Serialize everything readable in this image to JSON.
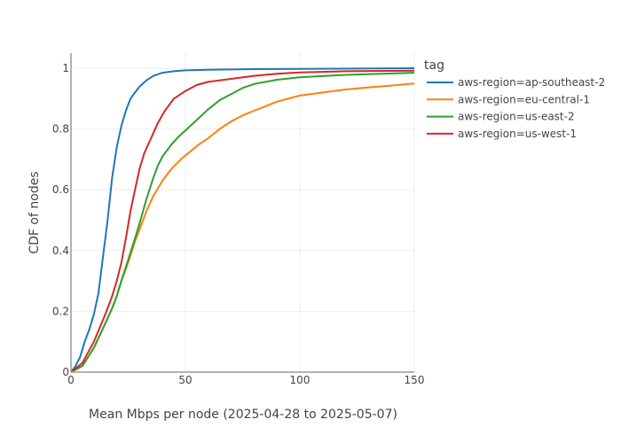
{
  "chart_data": {
    "type": "line",
    "title": "",
    "xlabel": "Mean Mbps per node (2025-04-28 to 2025-05-07)",
    "ylabel": "CDF of nodes",
    "xlim": [
      0,
      150
    ],
    "ylim": [
      0,
      1.05
    ],
    "xticks": [
      0,
      50,
      100,
      150
    ],
    "xtick_labels": [
      "0",
      "50",
      "100",
      "150"
    ],
    "yticks": [
      0,
      0.2,
      0.4,
      0.6,
      0.8,
      1
    ],
    "ytick_labels": [
      "0",
      "0.2",
      "0.4",
      "0.6",
      "0.8",
      "1"
    ],
    "grid": true,
    "legend_title": "tag",
    "legend_position": "right",
    "series": [
      {
        "name": "aws-region=ap-southeast-2",
        "color": "#1f77b4",
        "x": [
          0,
          2,
          4,
          6,
          8,
          10,
          12,
          14,
          16,
          18,
          20,
          22,
          24,
          26,
          28,
          30,
          33,
          36,
          40,
          45,
          50,
          60,
          80,
          100,
          150
        ],
        "y": [
          0,
          0.02,
          0.05,
          0.1,
          0.14,
          0.19,
          0.26,
          0.38,
          0.5,
          0.64,
          0.74,
          0.81,
          0.86,
          0.9,
          0.92,
          0.94,
          0.96,
          0.975,
          0.985,
          0.99,
          0.993,
          0.995,
          0.997,
          0.998,
          1.0
        ]
      },
      {
        "name": "aws-region=eu-central-1",
        "color": "#ff7f0e",
        "x": [
          0,
          5,
          10,
          15,
          18,
          20,
          22,
          25,
          28,
          30,
          33,
          36,
          40,
          44,
          48,
          52,
          56,
          60,
          65,
          70,
          75,
          80,
          85,
          90,
          100,
          110,
          120,
          130,
          140,
          150
        ],
        "y": [
          0,
          0.02,
          0.08,
          0.16,
          0.21,
          0.25,
          0.3,
          0.36,
          0.43,
          0.47,
          0.53,
          0.58,
          0.63,
          0.67,
          0.7,
          0.725,
          0.75,
          0.77,
          0.8,
          0.825,
          0.845,
          0.86,
          0.875,
          0.89,
          0.91,
          0.92,
          0.93,
          0.937,
          0.943,
          0.95
        ]
      },
      {
        "name": "aws-region=us-east-2",
        "color": "#2ca02c",
        "x": [
          0,
          5,
          10,
          15,
          18,
          20,
          22,
          25,
          28,
          30,
          33,
          36,
          38,
          40,
          44,
          47,
          50,
          55,
          60,
          65,
          70,
          75,
          80,
          90,
          100,
          120,
          150
        ],
        "y": [
          0,
          0.02,
          0.08,
          0.16,
          0.21,
          0.25,
          0.3,
          0.37,
          0.44,
          0.49,
          0.57,
          0.64,
          0.68,
          0.71,
          0.75,
          0.775,
          0.795,
          0.83,
          0.865,
          0.895,
          0.915,
          0.935,
          0.948,
          0.962,
          0.97,
          0.978,
          0.985
        ]
      },
      {
        "name": "aws-region=us-west-1",
        "color": "#d62728",
        "x": [
          0,
          5,
          10,
          15,
          18,
          20,
          22,
          24,
          26,
          28,
          30,
          32,
          35,
          38,
          41,
          45,
          50,
          55,
          60,
          70,
          80,
          90,
          100,
          120,
          150
        ],
        "y": [
          0,
          0.03,
          0.1,
          0.19,
          0.25,
          0.3,
          0.36,
          0.44,
          0.53,
          0.6,
          0.67,
          0.72,
          0.77,
          0.82,
          0.86,
          0.9,
          0.925,
          0.945,
          0.955,
          0.965,
          0.975,
          0.982,
          0.986,
          0.99,
          0.992
        ]
      }
    ]
  }
}
